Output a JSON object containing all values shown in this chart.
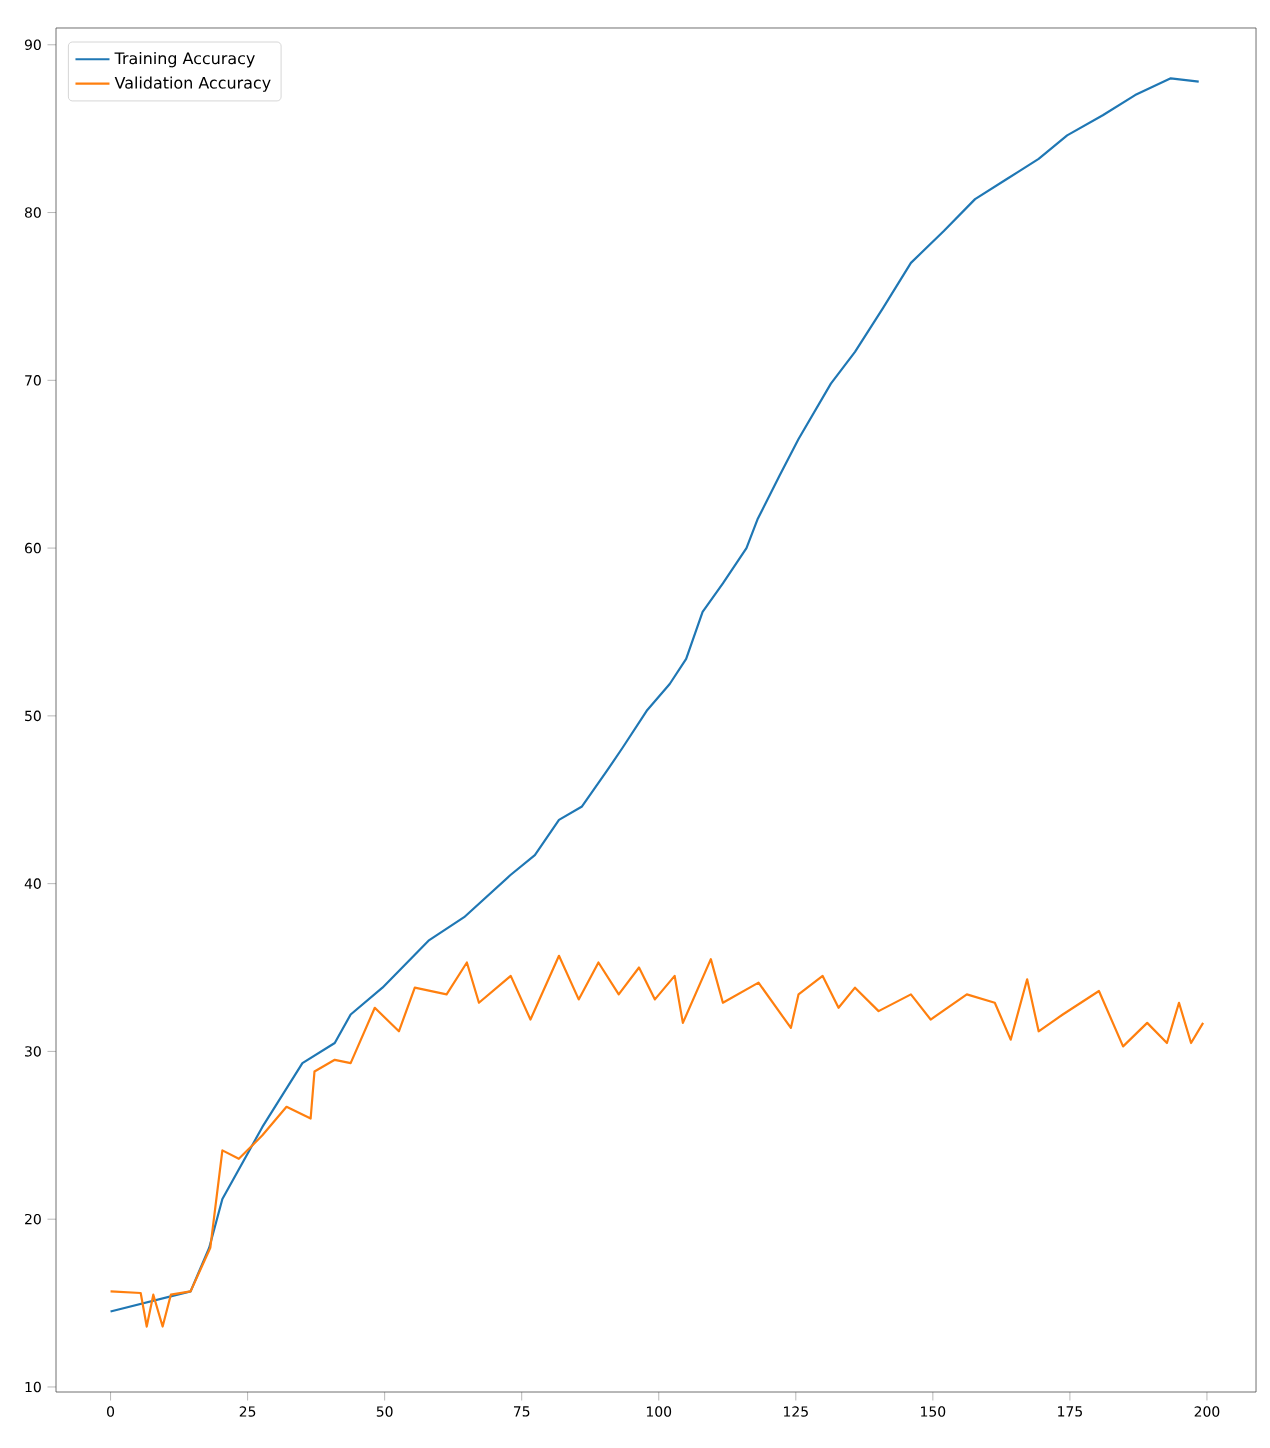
{
  "chart_data": {
    "type": "line",
    "xlim": [
      -9.95,
      208.95
    ],
    "ylim": [
      9.7,
      91.0
    ],
    "xticks": [
      0,
      25,
      50,
      75,
      100,
      125,
      150,
      175,
      200
    ],
    "yticks": [
      10,
      20,
      30,
      40,
      50,
      60,
      70,
      80,
      90
    ],
    "grid": false,
    "legend": "top left",
    "marker": "none",
    "line_style": "solid",
    "series": [
      {
        "name": "Training Accuracy",
        "color": "#1f77b4",
        "x": [
          0,
          14.6,
          18,
          20.4,
          27.7,
          35,
          40.9,
          43.8,
          49.6,
          58,
          64.5,
          72.9,
          77.4,
          81.8,
          86,
          90.5,
          93.4,
          97.8,
          102,
          105,
          108,
          111.7,
          116,
          118,
          122,
          125.5,
          131.4,
          135.8,
          140.9,
          146,
          152,
          157.7,
          163.5,
          169.3,
          174.5,
          181,
          186.9,
          193.4,
          198.5
        ],
        "values": [
          14.5,
          15.7,
          18.3,
          21.2,
          25.5,
          29.3,
          30.5,
          32.2,
          33.8,
          36.6,
          38,
          40.5,
          41.7,
          43.8,
          44.6,
          46.7,
          48.1,
          50.3,
          51.9,
          53.4,
          56.2,
          57.9,
          60,
          61.7,
          64.3,
          66.5,
          69.8,
          71.7,
          74.3,
          77,
          78.9,
          80.8,
          82,
          83.2,
          84.6,
          85.8,
          87,
          88,
          87.8
        ]
      },
      {
        "name": "Validation Accuracy",
        "color": "#ff7f0e",
        "x": [
          0,
          5.5,
          6.6,
          7.8,
          9.5,
          11,
          14.6,
          18.2,
          20.4,
          23.4,
          27.7,
          32.1,
          36.5,
          37.2,
          40.9,
          43.8,
          48.2,
          52.6,
          55.5,
          61.3,
          65,
          67.2,
          73,
          76.6,
          81.8,
          85.4,
          89,
          92.7,
          96.4,
          99.3,
          102.9,
          104.4,
          109.5,
          111.7,
          118.2,
          124.1,
          125.5,
          129.9,
          132.8,
          135.8,
          140.1,
          146,
          149.6,
          156.2,
          161.3,
          164.2,
          167.2,
          169.3,
          173.7,
          180.3,
          184.7,
          189.1,
          192.7,
          194.9,
          197.1,
          199.3
        ],
        "values": [
          15.7,
          15.6,
          13.6,
          15.5,
          13.6,
          15.5,
          15.7,
          18.3,
          24.1,
          23.6,
          25,
          26.7,
          26,
          28.8,
          29.5,
          29.3,
          32.6,
          31.2,
          33.8,
          33.4,
          35.3,
          32.9,
          34.5,
          31.9,
          35.7,
          33.1,
          35.3,
          33.4,
          35,
          33.1,
          34.5,
          31.7,
          35.5,
          32.9,
          34.1,
          31.4,
          33.4,
          34.5,
          32.6,
          33.8,
          32.4,
          33.4,
          31.9,
          33.4,
          32.9,
          30.7,
          34.3,
          31.2,
          32.2,
          33.6,
          30.3,
          31.7,
          30.5,
          32.9,
          30.5,
          31.7
        ]
      }
    ]
  }
}
